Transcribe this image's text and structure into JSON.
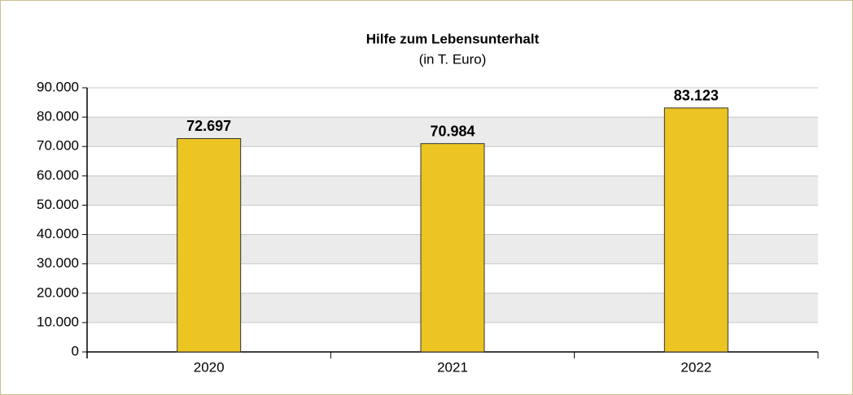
{
  "chart_data": {
    "type": "bar",
    "title": "Hilfe zum Lebensunterhalt",
    "subtitle": "(in T. Euro)",
    "categories": [
      "2020",
      "2021",
      "2022"
    ],
    "values": [
      72697,
      70984,
      83123
    ],
    "value_labels": [
      "72.697",
      "70.984",
      "83.123"
    ],
    "color": "#ecc523",
    "ylim": [
      0,
      90000
    ],
    "yticks": [
      0,
      {
        "value": 10000,
        "label": "10.000"
      },
      {
        "value": 20000,
        "label": "20.000"
      },
      {
        "value": 30000,
        "label": "30.000"
      },
      {
        "value": 40000,
        "label": "40.000"
      },
      {
        "value": 50000,
        "label": "50.000"
      },
      {
        "value": 60000,
        "label": "60.000"
      },
      {
        "value": 70000,
        "label": "70.000"
      },
      {
        "value": 80000,
        "label": "80.000"
      },
      {
        "value": 90000,
        "label": "90.000"
      }
    ],
    "grid": true
  }
}
